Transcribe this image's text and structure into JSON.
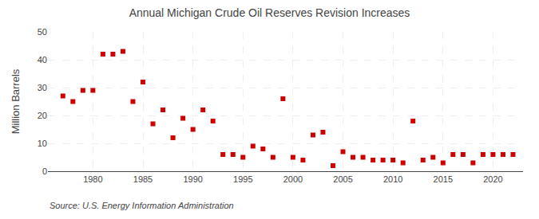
{
  "chart_data": {
    "type": "scatter",
    "title": "Annual Michigan Crude Oil Reserves Revision Increases",
    "ylabel": "Million Barrels",
    "annotations": [
      "Source: U.S. Energy Information Administration"
    ],
    "x": [
      1977,
      1978,
      1979,
      1980,
      1981,
      1982,
      1983,
      1984,
      1985,
      1986,
      1987,
      1988,
      1989,
      1990,
      1991,
      1992,
      1993,
      1994,
      1995,
      1996,
      1997,
      1998,
      1999,
      2000,
      2001,
      2002,
      2003,
      2004,
      2005,
      2006,
      2007,
      2008,
      2009,
      2010,
      2011,
      2012,
      2013,
      2014,
      2015,
      2016,
      2017,
      2018,
      2019,
      2020,
      2021,
      2022
    ],
    "values": [
      27,
      25,
      29,
      29,
      42,
      42,
      43,
      25,
      32,
      17,
      22,
      12,
      19,
      15,
      22,
      18,
      6,
      6,
      5,
      9,
      8,
      5,
      26,
      5,
      4,
      13,
      14,
      2,
      7,
      5,
      5,
      4,
      4,
      4,
      3,
      18,
      4,
      5,
      3,
      6,
      6,
      3,
      6,
      6,
      6,
      6
    ],
    "color": "#cc0000",
    "marker": "square",
    "xlim": [
      1975.5,
      2023
    ],
    "xticks": [
      1980,
      1985,
      1990,
      1995,
      2000,
      2005,
      2010,
      2015,
      2020
    ],
    "ylim": [
      0,
      50
    ],
    "yticks": [
      0,
      10,
      20,
      30,
      40,
      50
    ],
    "grid": true
  }
}
